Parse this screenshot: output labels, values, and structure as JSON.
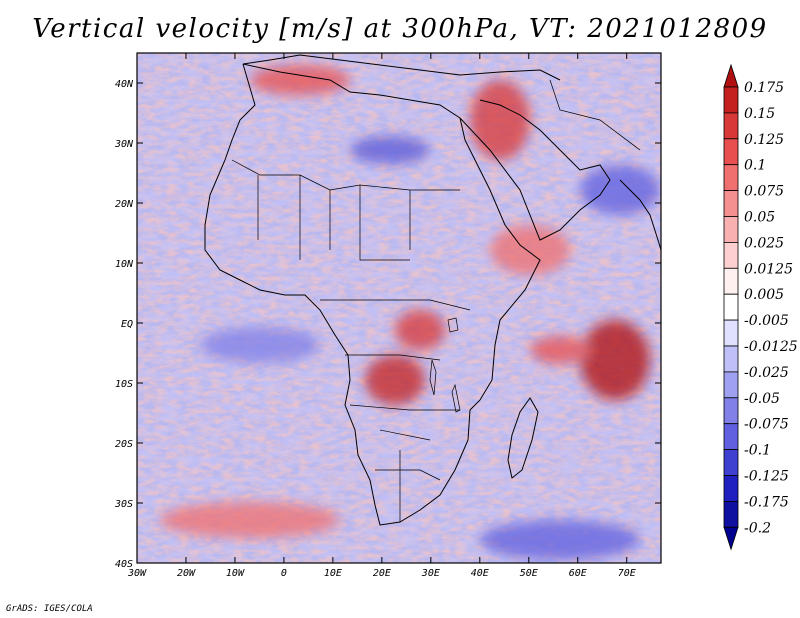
{
  "title": "Vertical velocity [m/s] at 300hPa, VT: 2021012809",
  "footer": "GrADS: IGES/COLA",
  "chart_data": {
    "type": "heatmap",
    "title": "Vertical velocity [m/s] at 300hPa, VT: 2021012809",
    "variable": "Vertical velocity",
    "units": "m/s",
    "level": "300hPa",
    "valid_time": "2021012809",
    "x_range": [
      -30,
      77
    ],
    "y_range": [
      -40,
      45
    ],
    "x_ticks": [
      {
        "value": -30,
        "label": "30W"
      },
      {
        "value": -20,
        "label": "20W"
      },
      {
        "value": -10,
        "label": "10W"
      },
      {
        "value": 0,
        "label": "0"
      },
      {
        "value": 10,
        "label": "10E"
      },
      {
        "value": 20,
        "label": "20E"
      },
      {
        "value": 30,
        "label": "30E"
      },
      {
        "value": 40,
        "label": "40E"
      },
      {
        "value": 50,
        "label": "50E"
      },
      {
        "value": 60,
        "label": "60E"
      },
      {
        "value": 70,
        "label": "70E"
      }
    ],
    "y_ticks": [
      {
        "value": 40,
        "label": "40N"
      },
      {
        "value": 30,
        "label": "30N"
      },
      {
        "value": 20,
        "label": "20N"
      },
      {
        "value": 10,
        "label": "10N"
      },
      {
        "value": 0,
        "label": "EQ"
      },
      {
        "value": -10,
        "label": "10S"
      },
      {
        "value": -20,
        "label": "20S"
      },
      {
        "value": -30,
        "label": "30S"
      },
      {
        "value": -40,
        "label": "40S"
      }
    ],
    "colorbar": {
      "levels": [
        "0.175",
        "0.15",
        "0.125",
        "0.1",
        "0.075",
        "0.05",
        "0.025",
        "0.0125",
        "0.005",
        "-0.005",
        "-0.0125",
        "-0.025",
        "-0.05",
        "-0.075",
        "-0.1",
        "-0.125",
        "-0.175",
        "-0.2"
      ],
      "colors": [
        "#b01010",
        "#c42020",
        "#d83838",
        "#e85050",
        "#f07070",
        "#f49090",
        "#f8b0b0",
        "#fcd0d0",
        "#fff0f0",
        "#ffffff",
        "#e0e0ff",
        "#c0c0f8",
        "#a0a0f0",
        "#8080e8",
        "#6060e0",
        "#4040d0",
        "#2020c0",
        "#1010a0",
        "#000090"
      ]
    }
  }
}
